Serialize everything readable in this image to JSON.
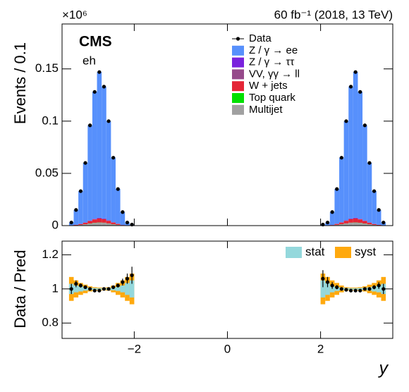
{
  "chart_data": [
    {
      "type": "stacked_histogram",
      "y_multiplier": "×10⁶",
      "lumi": "60 fb⁻¹ (2018, 13 TeV)",
      "experiment": "CMS",
      "channel": "eh",
      "ylabel": "Events / 0.1",
      "x": [
        -3.35,
        -3.25,
        -3.15,
        -3.05,
        -2.95,
        -2.85,
        -2.75,
        -2.65,
        -2.55,
        -2.45,
        -2.35,
        -2.25,
        -2.15,
        -2.05,
        2.05,
        2.15,
        2.25,
        2.35,
        2.45,
        2.55,
        2.65,
        2.75,
        2.85,
        2.95,
        3.05,
        3.15,
        3.25,
        3.35
      ],
      "xlim": [
        -3.55,
        3.55
      ],
      "ylim": [
        0,
        0.193
      ],
      "yticks": [
        0,
        0.05,
        0.1,
        0.15
      ],
      "data": {
        "name": "Data",
        "color": "#000000",
        "values": [
          0.003,
          0.015,
          0.033,
          0.06,
          0.096,
          0.128,
          0.147,
          0.133,
          0.1,
          0.065,
          0.035,
          0.013,
          0.003,
          0.001,
          0.001,
          0.003,
          0.013,
          0.035,
          0.065,
          0.1,
          0.133,
          0.147,
          0.128,
          0.096,
          0.06,
          0.033,
          0.015,
          0.003
        ]
      },
      "series": [
        {
          "name": "Z / γ → ee",
          "color": "#5790fc",
          "values": [
            0.00285,
            0.0143,
            0.0314,
            0.057,
            0.0912,
            0.1216,
            0.1396,
            0.1264,
            0.095,
            0.0618,
            0.0333,
            0.0124,
            0.00285,
            0.00095,
            0.00095,
            0.00285,
            0.0124,
            0.0333,
            0.0618,
            0.095,
            0.1264,
            0.1396,
            0.1216,
            0.0912,
            0.057,
            0.0314,
            0.0143,
            0.00285
          ]
        },
        {
          "name": "Z / γ → ττ",
          "color": "#7a21dd",
          "values": [
            1e-05,
            5e-05,
            0.0001,
            0.00018,
            0.0003,
            0.0004,
            0.00044,
            0.0004,
            0.0003,
            0.0002,
            0.0001,
            4e-05,
            1e-05,
            0,
            0,
            1e-05,
            4e-05,
            0.0001,
            0.0002,
            0.0003,
            0.0004,
            0.00044,
            0.0004,
            0.0003,
            0.00018,
            0.0001,
            5e-05,
            1e-05
          ]
        },
        {
          "name": "VV, γγ → ll",
          "color": "#964a8b",
          "values": [
            1e-05,
            3e-05,
            7e-05,
            0.00012,
            0.0002,
            0.00026,
            0.0003,
            0.00027,
            0.0002,
            0.00013,
            7e-05,
            3e-05,
            1e-05,
            0,
            0,
            1e-05,
            3e-05,
            7e-05,
            0.00013,
            0.0002,
            0.00027,
            0.0003,
            0.00026,
            0.0002,
            0.00012,
            7e-05,
            3e-05,
            1e-05
          ]
        },
        {
          "name": "W + jets",
          "color": "#e42536",
          "values": [
            8e-05,
            0.0004,
            0.0008,
            0.0015,
            0.0024,
            0.0032,
            0.0037,
            0.0033,
            0.0025,
            0.0016,
            0.0009,
            0.0003,
            8e-05,
            3e-05,
            3e-05,
            8e-05,
            0.0003,
            0.0009,
            0.0016,
            0.0025,
            0.0033,
            0.0037,
            0.0032,
            0.0024,
            0.0015,
            0.0008,
            0.0004,
            8e-05
          ]
        },
        {
          "name": "Top quark",
          "color": "#00e000",
          "values": [
            0,
            1e-05,
            3e-05,
            6e-05,
            0.0001,
            0.00013,
            0.00015,
            0.00013,
            0.0001,
            6e-05,
            3e-05,
            1e-05,
            0,
            0,
            0,
            0,
            1e-05,
            3e-05,
            6e-05,
            0.0001,
            0.00013,
            0.00015,
            0.00013,
            0.0001,
            6e-05,
            3e-05,
            1e-05,
            0
          ]
        },
        {
          "name": "Multijet",
          "color": "#a0a0a0",
          "values": [
            6e-05,
            0.0003,
            0.00066,
            0.0012,
            0.0019,
            0.0026,
            0.0029,
            0.0027,
            0.002,
            0.0013,
            0.0007,
            0.00026,
            6e-05,
            2e-05,
            2e-05,
            6e-05,
            0.00026,
            0.0007,
            0.0013,
            0.002,
            0.0027,
            0.0029,
            0.0026,
            0.0019,
            0.0012,
            0.00066,
            0.0003,
            6e-05
          ]
        }
      ]
    },
    {
      "type": "ratio",
      "ylabel": "Data / Pred",
      "xlabel": "y",
      "xlim": [
        -3.55,
        3.55
      ],
      "xticks": [
        {
          "value": -2,
          "label": "−2"
        },
        0,
        2
      ],
      "ylim": [
        0.71,
        1.28
      ],
      "yticks": [
        0.8,
        1,
        1.2
      ],
      "series": [
        {
          "name": "Data",
          "color": "#000000",
          "values": [
            1.0,
            1.03,
            1.02,
            1.01,
            1.0,
            0.99,
            0.99,
            1.0,
            1.0,
            1.01,
            1.02,
            1.04,
            1.06,
            1.08,
            1.06,
            1.04,
            1.02,
            1.01,
            1.0,
            0.995,
            0.99,
            0.99,
            0.99,
            1.0,
            1.0,
            1.01,
            1.02,
            1.0
          ],
          "errors": [
            0.03,
            0.02,
            0.012,
            0.008,
            0.006,
            0.005,
            0.005,
            0.005,
            0.006,
            0.008,
            0.012,
            0.02,
            0.03,
            0.05,
            0.05,
            0.03,
            0.02,
            0.012,
            0.008,
            0.006,
            0.005,
            0.005,
            0.005,
            0.006,
            0.008,
            0.012,
            0.02,
            0.03
          ]
        }
      ],
      "bands": [
        {
          "name": "syst",
          "color": "#ffa90e",
          "values": [
            0.07,
            0.05,
            0.035,
            0.025,
            0.015,
            0.01,
            0.008,
            0.008,
            0.01,
            0.02,
            0.035,
            0.05,
            0.07,
            0.09,
            0.09,
            0.07,
            0.05,
            0.035,
            0.02,
            0.01,
            0.008,
            0.008,
            0.01,
            0.015,
            0.025,
            0.035,
            0.05,
            0.07
          ]
        },
        {
          "name": "stat",
          "color": "#94d8dc",
          "values": [
            0.03,
            0.02,
            0.015,
            0.01,
            0.007,
            0.005,
            0.004,
            0.004,
            0.005,
            0.008,
            0.012,
            0.02,
            0.035,
            0.05,
            0.05,
            0.035,
            0.02,
            0.012,
            0.008,
            0.005,
            0.004,
            0.004,
            0.005,
            0.007,
            0.01,
            0.015,
            0.02,
            0.03
          ]
        }
      ]
    }
  ]
}
